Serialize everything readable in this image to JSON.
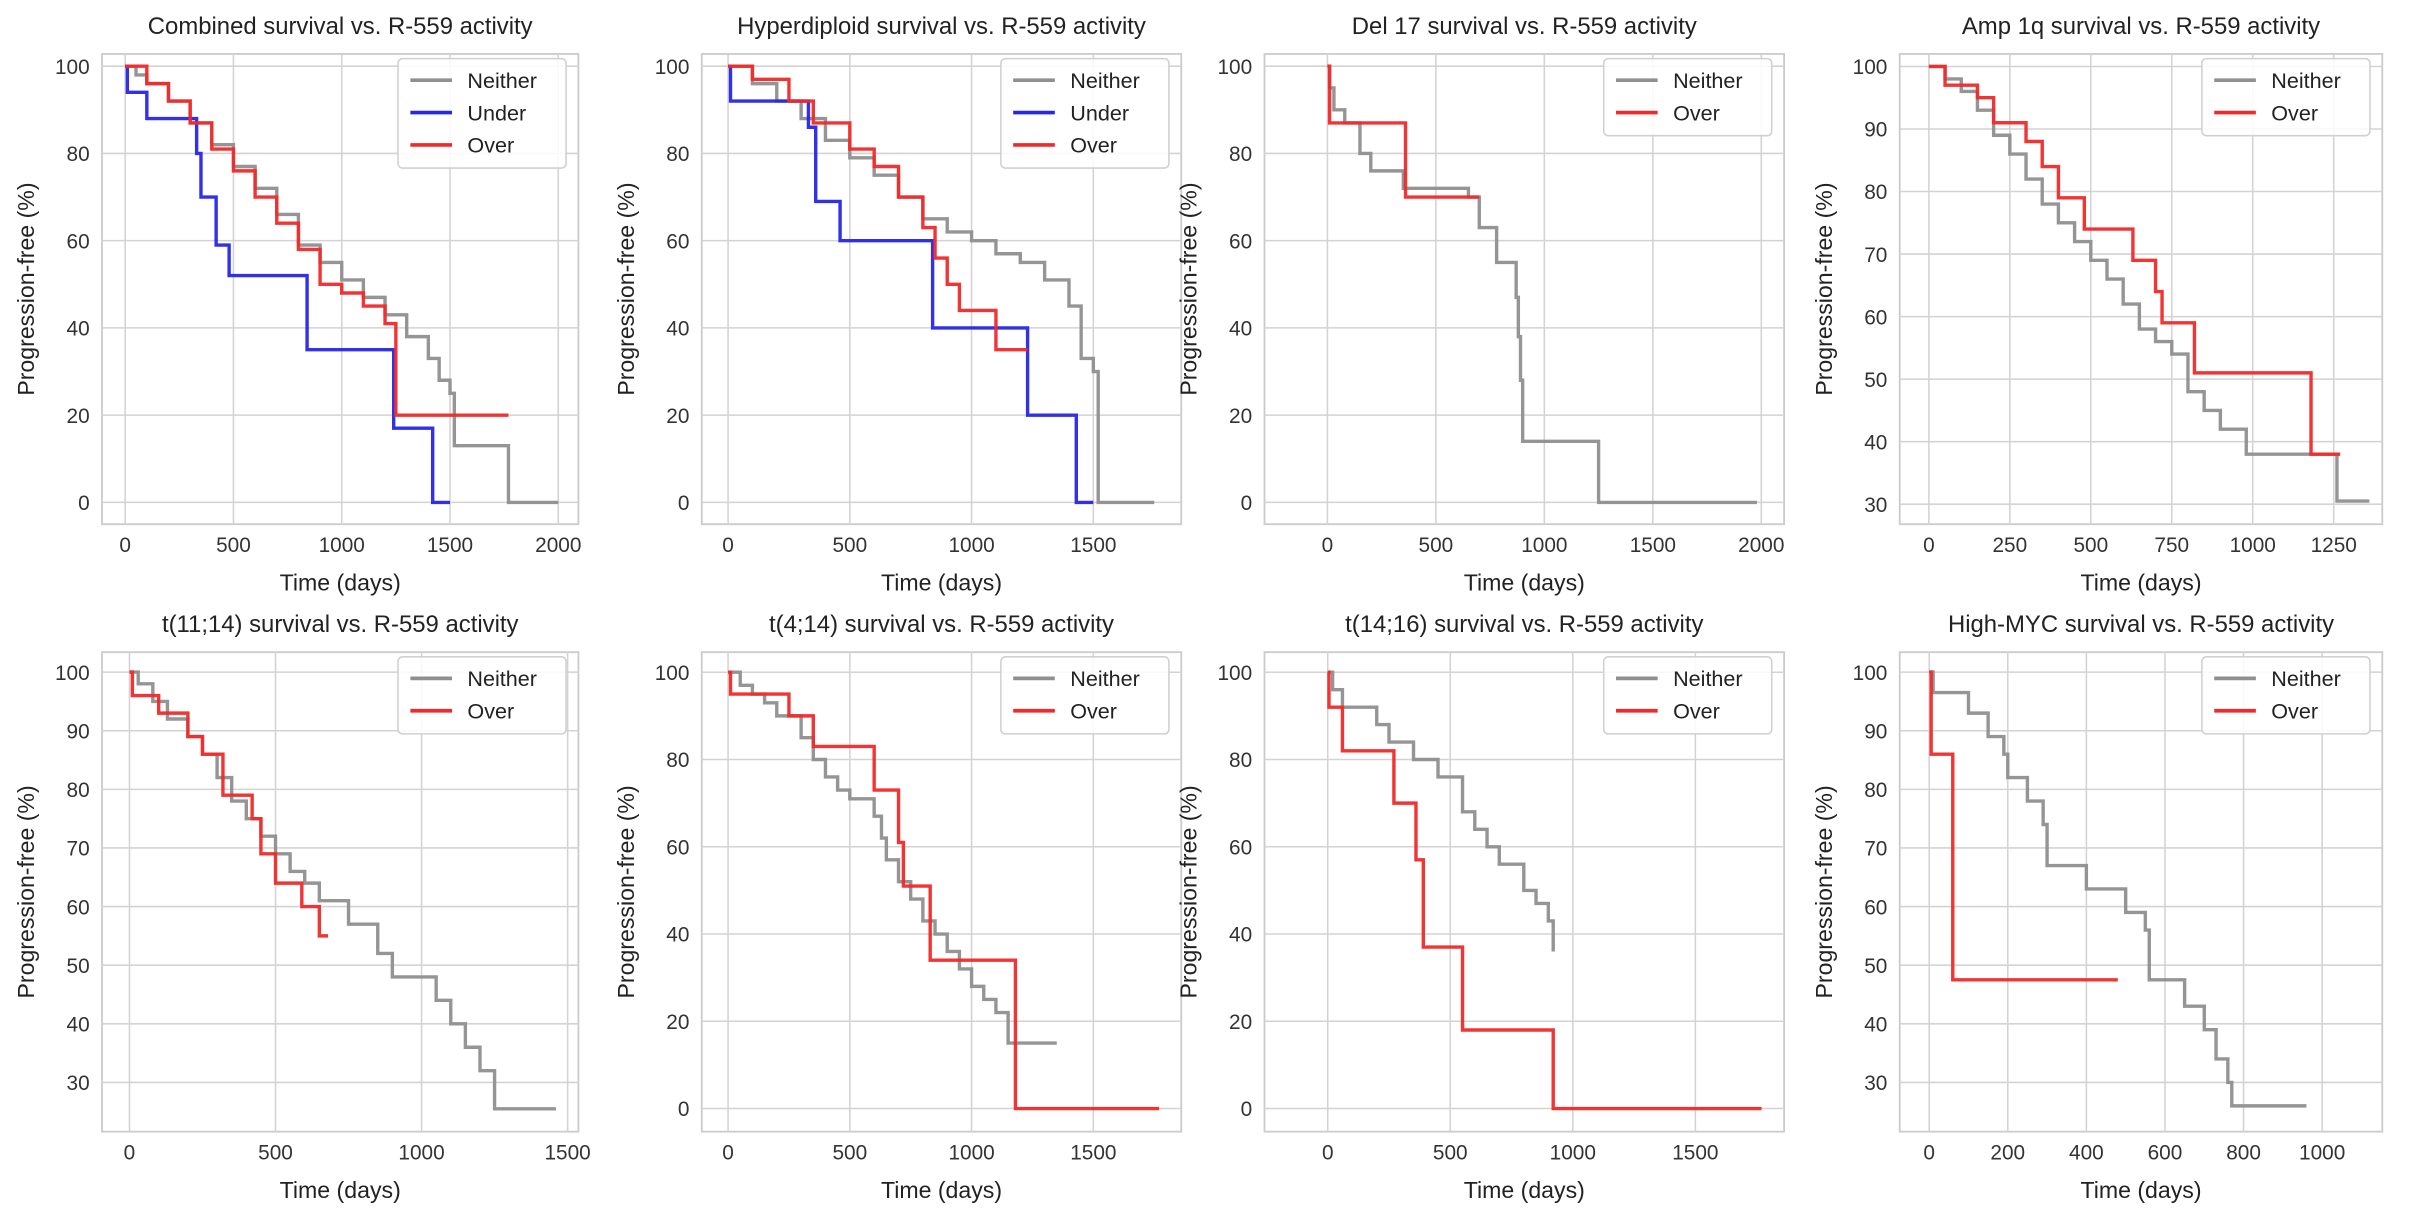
{
  "chart_data": [
    {
      "type": "line",
      "step": true,
      "title": "Combined survival vs. R-559 activity",
      "xlabel": "Time (days)",
      "ylabel": "Progression-free (%)",
      "xlim": [
        -107,
        2093
      ],
      "ylim": [
        -5,
        102.8
      ],
      "xticks": [
        0,
        500,
        1000,
        1500,
        2000
      ],
      "yticks": [
        0,
        20,
        40,
        60,
        80,
        100
      ],
      "grid": true,
      "legend": "upper right",
      "series": [
        {
          "name": "Neither",
          "color": "#8f8f8f",
          "x": [
            0,
            50,
            100,
            200,
            300,
            400,
            500,
            600,
            700,
            800,
            900,
            1000,
            1100,
            1200,
            1300,
            1400,
            1450,
            1500,
            1520,
            1750,
            1770,
            2000
          ],
          "values": [
            100,
            98,
            96,
            92,
            87,
            82,
            77,
            72,
            66,
            59,
            55,
            51,
            47,
            43,
            38,
            33,
            28,
            25,
            13,
            13,
            0,
            0
          ]
        },
        {
          "name": "Under",
          "color": "#2626e6",
          "x": [
            0,
            10,
            100,
            330,
            350,
            420,
            480,
            500,
            840,
            1240,
            1420,
            1500
          ],
          "values": [
            100,
            94,
            88,
            80,
            70,
            59,
            52,
            52,
            35,
            17,
            0,
            0
          ]
        },
        {
          "name": "Over",
          "color": "#f02a2a",
          "x": [
            0,
            100,
            200,
            300,
            400,
            500,
            600,
            700,
            800,
            900,
            1000,
            1100,
            1200,
            1250,
            1770
          ],
          "values": [
            100,
            96,
            92,
            87,
            81,
            76,
            70,
            64,
            58,
            50,
            48,
            45,
            41,
            20,
            20
          ]
        }
      ]
    },
    {
      "type": "line",
      "step": true,
      "title": "Hyperdiploid survival vs. R-559 activity",
      "xlabel": "Time (days)",
      "ylabel": "Progression-free (%)",
      "xlim": [
        -108,
        1861
      ],
      "ylim": [
        -5,
        102.8
      ],
      "xticks": [
        0,
        500,
        1000,
        1500
      ],
      "yticks": [
        0,
        20,
        40,
        60,
        80,
        100
      ],
      "grid": true,
      "legend": "upper right",
      "series": [
        {
          "name": "Neither",
          "color": "#8f8f8f",
          "x": [
            0,
            100,
            200,
            300,
            400,
            500,
            600,
            700,
            800,
            900,
            1000,
            1100,
            1200,
            1300,
            1400,
            1450,
            1500,
            1520,
            1750
          ],
          "values": [
            100,
            96,
            92,
            88,
            83,
            79,
            75,
            70,
            65,
            62,
            60,
            57,
            55,
            51,
            45,
            33,
            30,
            0,
            0
          ]
        },
        {
          "name": "Under",
          "color": "#2626e6",
          "x": [
            0,
            10,
            330,
            360,
            460,
            840,
            1230,
            1430,
            1500
          ],
          "values": [
            100,
            92,
            86,
            69,
            60,
            40,
            20,
            0,
            0
          ]
        },
        {
          "name": "Over",
          "color": "#f02a2a",
          "x": [
            0,
            100,
            250,
            350,
            500,
            600,
            700,
            800,
            850,
            900,
            950,
            1100,
            1230
          ],
          "values": [
            100,
            97,
            92,
            87,
            81,
            77,
            70,
            63,
            56,
            50,
            44,
            35,
            35
          ]
        }
      ]
    },
    {
      "type": "line",
      "step": true,
      "title": "Del 17 survival vs. R-559 activity",
      "xlabel": "Time (days)",
      "ylabel": "Progression-free (%)",
      "xlim": [
        -290,
        2105
      ],
      "ylim": [
        -5,
        102.8
      ],
      "xticks": [
        0,
        500,
        1000,
        1500,
        2000
      ],
      "yticks": [
        0,
        20,
        40,
        60,
        80,
        100
      ],
      "grid": true,
      "legend": "upper right",
      "series": [
        {
          "name": "Neither",
          "color": "#8f8f8f",
          "x": [
            0,
            10,
            30,
            80,
            150,
            200,
            350,
            650,
            700,
            780,
            870,
            880,
            890,
            900,
            1250,
            1980
          ],
          "values": [
            100,
            95,
            90,
            87,
            80,
            76,
            72,
            70,
            63,
            55,
            47,
            38,
            28,
            14,
            0,
            0
          ]
        },
        {
          "name": "Over",
          "color": "#f02a2a",
          "x": [
            0,
            10,
            360,
            700
          ],
          "values": [
            100,
            87,
            70,
            70
          ]
        }
      ]
    },
    {
      "type": "line",
      "step": true,
      "title": "Amp 1q survival vs. R-559 activity",
      "xlabel": "Time (days)",
      "ylabel": "Progression-free (%)",
      "xlim": [
        -90,
        1400
      ],
      "ylim": [
        26.8,
        102
      ],
      "xticks": [
        0,
        250,
        500,
        750,
        1000,
        1250
      ],
      "yticks": [
        30,
        40,
        50,
        60,
        70,
        80,
        90,
        100
      ],
      "grid": true,
      "legend": "upper right",
      "series": [
        {
          "name": "Neither",
          "color": "#8f8f8f",
          "x": [
            0,
            50,
            100,
            150,
            200,
            250,
            300,
            350,
            400,
            450,
            500,
            550,
            600,
            650,
            700,
            750,
            800,
            850,
            900,
            980,
            1250,
            1260,
            1360
          ],
          "values": [
            100,
            98,
            96,
            93,
            89,
            86,
            82,
            78,
            75,
            72,
            69,
            66,
            62,
            58,
            56,
            54,
            48,
            45,
            42,
            38,
            38,
            30.5,
            30.5
          ]
        },
        {
          "name": "Over",
          "color": "#f02a2a",
          "x": [
            0,
            50,
            150,
            200,
            300,
            350,
            400,
            480,
            630,
            700,
            720,
            820,
            1180,
            1270
          ],
          "values": [
            100,
            97,
            95,
            91,
            88,
            84,
            79,
            74,
            69,
            64,
            59,
            51,
            38,
            38
          ]
        }
      ]
    },
    {
      "type": "line",
      "step": true,
      "title": "t(11;14) survival vs. R-559 activity",
      "xlabel": "Time (days)",
      "ylabel": "Progression-free (%)",
      "xlim": [
        -94,
        1537
      ],
      "ylim": [
        21.6,
        103.4
      ],
      "xticks": [
        0,
        500,
        1000,
        1500
      ],
      "yticks": [
        30,
        40,
        50,
        60,
        70,
        80,
        90,
        100
      ],
      "grid": true,
      "legend": "upper right",
      "series": [
        {
          "name": "Neither",
          "color": "#8f8f8f",
          "x": [
            0,
            30,
            80,
            130,
            200,
            250,
            300,
            350,
            400,
            450,
            500,
            550,
            600,
            650,
            750,
            850,
            900,
            1050,
            1100,
            1150,
            1200,
            1250,
            1460
          ],
          "values": [
            100,
            98,
            95,
            92,
            89,
            86,
            82,
            78,
            75,
            72,
            69,
            66,
            64,
            61,
            57,
            52,
            48,
            44,
            40,
            36,
            32,
            25.5,
            25.5
          ]
        },
        {
          "name": "Over",
          "color": "#f02a2a",
          "x": [
            0,
            10,
            100,
            200,
            250,
            320,
            420,
            450,
            500,
            590,
            650,
            680
          ],
          "values": [
            100,
            96,
            93,
            89,
            86,
            79,
            75,
            69,
            64,
            60,
            55,
            55
          ]
        }
      ]
    },
    {
      "type": "line",
      "step": true,
      "title": "t(4;14) survival vs. R-559 activity",
      "xlabel": "Time (days)",
      "ylabel": "Progression-free (%)",
      "xlim": [
        -108,
        1861
      ],
      "ylim": [
        -5.3,
        104.6
      ],
      "xticks": [
        0,
        500,
        1000,
        1500
      ],
      "yticks": [
        0,
        20,
        40,
        60,
        80,
        100
      ],
      "grid": true,
      "legend": "upper right",
      "series": [
        {
          "name": "Neither",
          "color": "#8f8f8f",
          "x": [
            0,
            50,
            100,
            150,
            200,
            300,
            350,
            400,
            450,
            500,
            600,
            630,
            650,
            700,
            750,
            800,
            850,
            900,
            950,
            1000,
            1050,
            1100,
            1150,
            1350
          ],
          "values": [
            100,
            97,
            95,
            93,
            90,
            85,
            80,
            76,
            73,
            71,
            67,
            62,
            57,
            52,
            48,
            43,
            40,
            36,
            32,
            28,
            25,
            22,
            15,
            15
          ]
        },
        {
          "name": "Over",
          "color": "#f02a2a",
          "x": [
            0,
            10,
            250,
            350,
            600,
            700,
            720,
            830,
            1180,
            1770
          ],
          "values": [
            100,
            95,
            90,
            83,
            73,
            61,
            51,
            34,
            0,
            0
          ]
        }
      ]
    },
    {
      "type": "line",
      "step": true,
      "title": "t(14;16) survival vs. R-559 activity",
      "xlabel": "Time (days)",
      "ylabel": "Progression-free (%)",
      "xlim": [
        -258,
        1862
      ],
      "ylim": [
        -5.3,
        104.6
      ],
      "xticks": [
        0,
        500,
        1000,
        1500
      ],
      "yticks": [
        0,
        20,
        40,
        60,
        80,
        100
      ],
      "grid": true,
      "legend": "upper right",
      "series": [
        {
          "name": "Neither",
          "color": "#8f8f8f",
          "x": [
            0,
            20,
            60,
            200,
            250,
            350,
            450,
            550,
            600,
            650,
            700,
            800,
            850,
            900,
            920
          ],
          "values": [
            100,
            96,
            92,
            88,
            84,
            80,
            76,
            68,
            64,
            60,
            56,
            50,
            47,
            43,
            36
          ]
        },
        {
          "name": "Over",
          "color": "#f02a2a",
          "x": [
            0,
            5,
            60,
            270,
            360,
            390,
            550,
            920,
            1770
          ],
          "values": [
            100,
            92,
            82,
            70,
            57,
            37,
            18,
            0,
            0
          ]
        }
      ]
    },
    {
      "type": "line",
      "step": true,
      "title": "High-MYC survival vs. R-559 activity",
      "xlabel": "Time (days)",
      "ylabel": "Progression-free (%)",
      "xlim": [
        -75,
        1153
      ],
      "ylim": [
        21.6,
        103.4
      ],
      "xticks": [
        0,
        200,
        400,
        600,
        800,
        1000
      ],
      "yticks": [
        30,
        40,
        50,
        60,
        70,
        80,
        90,
        100
      ],
      "grid": true,
      "legend": "upper right",
      "series": [
        {
          "name": "Neither",
          "color": "#8f8f8f",
          "x": [
            0,
            10,
            100,
            150,
            190,
            200,
            250,
            290,
            300,
            400,
            500,
            550,
            560,
            650,
            700,
            730,
            760,
            770,
            960
          ],
          "values": [
            100,
            96.5,
            93,
            89,
            86,
            82,
            78,
            74,
            67,
            63,
            59,
            56,
            47.5,
            43,
            39,
            34,
            30,
            26,
            26
          ]
        },
        {
          "name": "Over",
          "color": "#f02a2a",
          "x": [
            0,
            5,
            60,
            480
          ],
          "values": [
            100,
            86,
            47.5,
            47.5
          ]
        }
      ]
    }
  ]
}
